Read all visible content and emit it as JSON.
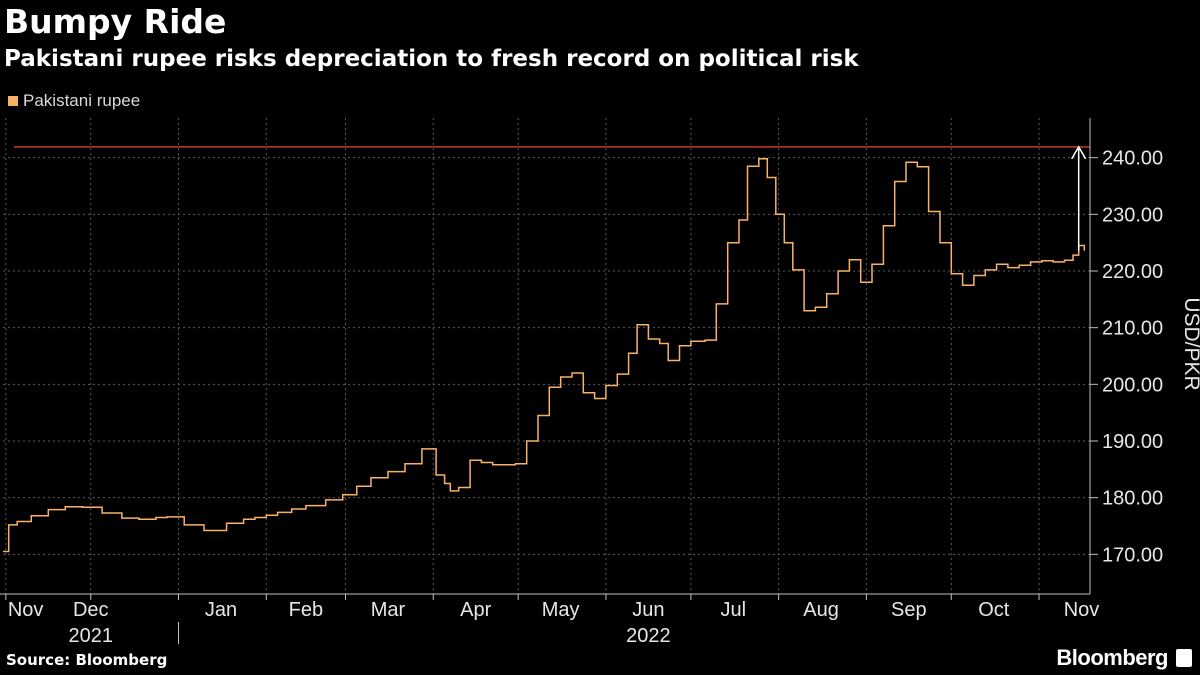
{
  "header": {
    "title": "Bumpy Ride",
    "subtitle": "Pakistani rupee risks depreciation to fresh record on political risk"
  },
  "footer": {
    "source": "Source: Bloomberg",
    "brand": "Bloomberg"
  },
  "colors": {
    "background": "#000000",
    "series": "#f7b267",
    "reference_line": "#c0392b",
    "grid": "#5a5a5a"
  },
  "chart_data": {
    "type": "line",
    "title": "Bumpy Ride",
    "subtitle": "Pakistani rupee risks depreciation to fresh record on political risk",
    "ylabel": "USD/PKR",
    "xlabel": "",
    "ylim": [
      163,
      247
    ],
    "yticks": [
      170,
      180,
      190,
      200,
      210,
      220,
      230,
      240
    ],
    "ytick_labels": [
      "170.00",
      "180.00",
      "190.00",
      "200.00",
      "210.00",
      "220.00",
      "230.00",
      "240.00"
    ],
    "grid": true,
    "legend_position": "top-left",
    "x_range": [
      "2021-10-31",
      "2022-11-19"
    ],
    "x_month_labels": [
      {
        "label": "Nov",
        "date": "2021-11-08"
      },
      {
        "label": "Dec",
        "date": "2021-12-01"
      },
      {
        "label": "Jan",
        "date": "2022-01-16"
      },
      {
        "label": "Feb",
        "date": "2022-02-15"
      },
      {
        "label": "Mar",
        "date": "2022-03-16"
      },
      {
        "label": "Apr",
        "date": "2022-04-16"
      },
      {
        "label": "May",
        "date": "2022-05-16"
      },
      {
        "label": "Jun",
        "date": "2022-06-16"
      },
      {
        "label": "Jul",
        "date": "2022-07-16"
      },
      {
        "label": "Aug",
        "date": "2022-08-16"
      },
      {
        "label": "Sep",
        "date": "2022-09-16"
      },
      {
        "label": "Oct",
        "date": "2022-10-16"
      },
      {
        "label": "Nov",
        "date": "2022-11-16"
      }
    ],
    "x_gridlines": [
      "2021-11-01",
      "2021-12-01",
      "2022-01-01",
      "2022-02-01",
      "2022-03-01",
      "2022-04-01",
      "2022-05-01",
      "2022-06-01",
      "2022-07-01",
      "2022-08-01",
      "2022-09-01",
      "2022-10-01",
      "2022-11-01"
    ],
    "x_year_labels": [
      {
        "label": "2021",
        "date": "2021-12-01"
      },
      {
        "label": "2022",
        "date": "2022-06-16"
      }
    ],
    "year_divider": "2022-01-01",
    "reference_line": {
      "y": 241.9
    },
    "annotation_arrow": {
      "x": "2022-11-15",
      "from_y": 223.6,
      "to_y": 241.9
    },
    "series": [
      {
        "name": "Pakistani rupee",
        "color": "#f7b267",
        "x": [
          "2021-10-31",
          "2021-11-02",
          "2021-11-05",
          "2021-11-10",
          "2021-11-16",
          "2021-11-22",
          "2021-11-28",
          "2021-12-05",
          "2021-12-12",
          "2021-12-18",
          "2021-12-24",
          "2021-12-28",
          "2022-01-03",
          "2022-01-10",
          "2022-01-18",
          "2022-01-24",
          "2022-01-28",
          "2022-02-01",
          "2022-02-05",
          "2022-02-10",
          "2022-02-15",
          "2022-02-22",
          "2022-02-28",
          "2022-03-05",
          "2022-03-10",
          "2022-03-16",
          "2022-03-22",
          "2022-03-28",
          "2022-04-02",
          "2022-04-05",
          "2022-04-07",
          "2022-04-10",
          "2022-04-14",
          "2022-04-18",
          "2022-04-22",
          "2022-04-26",
          "2022-04-30",
          "2022-05-04",
          "2022-05-08",
          "2022-05-12",
          "2022-05-16",
          "2022-05-20",
          "2022-05-24",
          "2022-05-28",
          "2022-06-01",
          "2022-06-05",
          "2022-06-09",
          "2022-06-12",
          "2022-06-16",
          "2022-06-20",
          "2022-06-23",
          "2022-06-27",
          "2022-07-01",
          "2022-07-06",
          "2022-07-10",
          "2022-07-14",
          "2022-07-18",
          "2022-07-21",
          "2022-07-25",
          "2022-07-28",
          "2022-07-31",
          "2022-08-03",
          "2022-08-06",
          "2022-08-10",
          "2022-08-14",
          "2022-08-18",
          "2022-08-22",
          "2022-08-26",
          "2022-08-30",
          "2022-09-03",
          "2022-09-07",
          "2022-09-11",
          "2022-09-15",
          "2022-09-19",
          "2022-09-23",
          "2022-09-27",
          "2022-10-01",
          "2022-10-05",
          "2022-10-09",
          "2022-10-13",
          "2022-10-17",
          "2022-10-21",
          "2022-10-25",
          "2022-10-29",
          "2022-11-02",
          "2022-11-06",
          "2022-11-10",
          "2022-11-13",
          "2022-11-15",
          "2022-11-17"
        ],
        "values": [
          170.5,
          175.2,
          175.8,
          176.8,
          177.9,
          178.4,
          178.3,
          177.3,
          176.4,
          176.2,
          176.5,
          176.6,
          175.2,
          174.2,
          175.5,
          176.2,
          176.5,
          176.9,
          177.4,
          178.0,
          178.6,
          179.6,
          180.5,
          182.0,
          183.5,
          184.6,
          186.0,
          188.6,
          184.0,
          182.5,
          181.2,
          181.8,
          186.6,
          186.2,
          185.8,
          185.8,
          186.0,
          190.0,
          194.5,
          199.5,
          201.3,
          202.0,
          198.5,
          197.5,
          199.8,
          201.8,
          205.5,
          210.5,
          208.0,
          207.2,
          204.2,
          206.8,
          207.6,
          207.8,
          214.2,
          225.0,
          229.0,
          238.5,
          239.8,
          236.5,
          230.0,
          225.0,
          220.2,
          213.0,
          213.6,
          216.0,
          220.0,
          222.0,
          218.0,
          221.2,
          228.0,
          235.8,
          239.2,
          238.4,
          230.5,
          225.0,
          219.5,
          217.5,
          219.2,
          220.2,
          221.2,
          220.6,
          221.0,
          221.6,
          221.8,
          221.6,
          221.9,
          222.8,
          224.5,
          223.6
        ]
      }
    ]
  }
}
